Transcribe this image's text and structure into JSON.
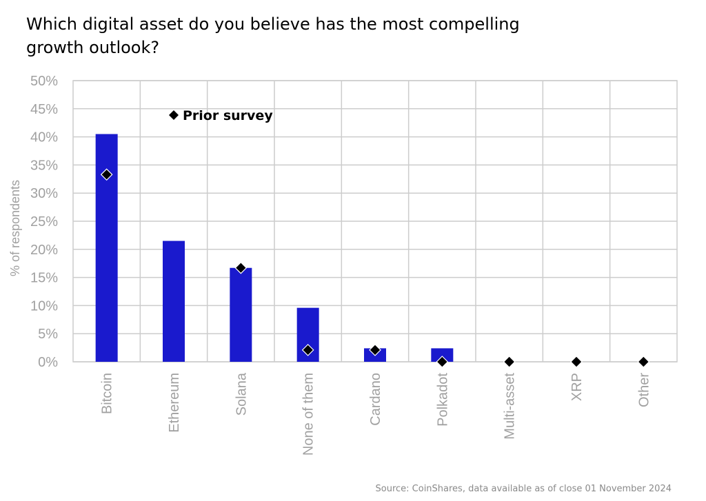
{
  "title_lines": [
    "Which digital asset do you believe has the most compelling",
    "growth outlook?"
  ],
  "source": "Source: CoinShares, data available as of close 01 November 2024",
  "legend_label": "Prior survey",
  "colors": {
    "bar": "#1a1acd",
    "marker": "#000000",
    "grid": "#cccccc",
    "axis_text": "#a0a0a0"
  },
  "chart_data": {
    "type": "bar",
    "title": "Which digital asset do you believe has the most compelling growth outlook?",
    "xlabel": "",
    "ylabel": "% of respondents",
    "ylim": [
      0,
      50
    ],
    "yticks": [
      "0%",
      "5%",
      "10%",
      "15%",
      "20%",
      "25%",
      "30%",
      "35%",
      "40%",
      "45%",
      "50%"
    ],
    "categories": [
      "Bitcoin",
      "Ethereum",
      "Solana",
      "None of them",
      "Cardano",
      "Polkadot",
      "Multi-asset",
      "XRP",
      "Other"
    ],
    "series": [
      {
        "values": [
          40.5,
          21.5,
          16.7,
          9.6,
          2.4,
          2.4,
          0,
          0,
          0
        ]
      },
      {
        "name": "Prior survey",
        "values": [
          33.3,
          null,
          16.7,
          2.1,
          2.1,
          0,
          0,
          0,
          0
        ]
      }
    ],
    "grid": true,
    "legend_position": "top-left"
  }
}
